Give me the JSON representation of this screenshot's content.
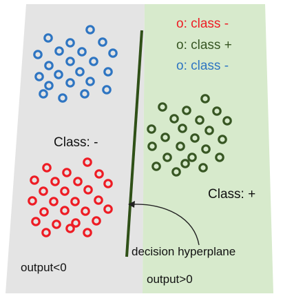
{
  "legend": {
    "red": "o: class -",
    "green": "o: class +",
    "blue": "o: class -"
  },
  "labels": {
    "class_minus": "Class: -",
    "class_plus": "Class: +",
    "hyperplane": "decision hyperplane",
    "output_neg": "output<0",
    "output_pos": "output>0"
  },
  "colors": {
    "negative_region": "#e4e4e4",
    "positive_region": "#d7eacc",
    "red": "#ee1c24",
    "green": "#375623",
    "blue": "#2e75c2",
    "line": "#2f5017",
    "text": "#111111"
  }
}
